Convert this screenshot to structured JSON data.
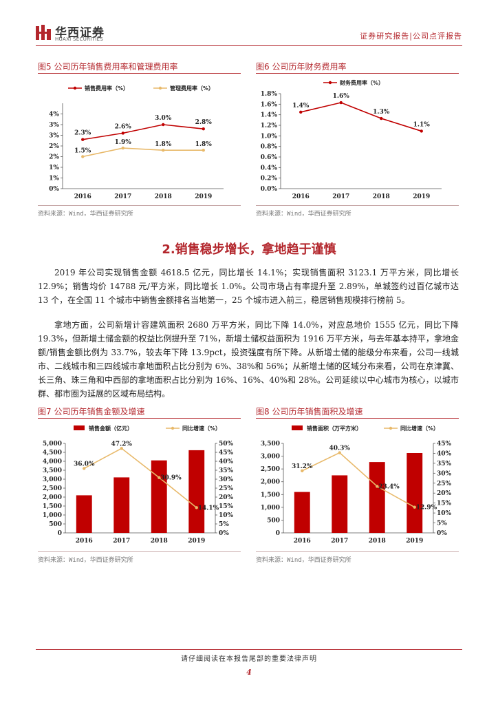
{
  "header": {
    "logo_cn": "华西证券",
    "logo_en": "HUAXI SECURITIES",
    "doc_type": "证券研究报告|公司点评报告"
  },
  "colors": {
    "accent": "#b3262c",
    "bar": "#c00000",
    "line_gold": "#e8b96a",
    "line_red": "#c00000"
  },
  "fig5": {
    "title": "图5   公司历年销售费用率和管理费用率",
    "source": "资料来源：Wind，华西证券研究所"
  },
  "fig6": {
    "title": "图6   公司历年财务费用率",
    "source": "资料来源：Wind，华西证券研究所"
  },
  "section": {
    "title": "2.销售稳步增长，拿地趋于谨慎"
  },
  "paragraphs": [
    "2019 年公司实现销售金额 4618.5 亿元，同比增长 14.1%；实现销售面积 3123.1 万平方米，同比增长 12.9%；销售均价 14788 元/平方米，同比增长 1.0%。公司市场占有率提升至 2.89%，单城签约过百亿城市达 13 个，在全国 11 个城市中销售金额排名当地第一，25 个城市进入前三，稳居销售规模排行榜前 5。",
    "拿地方面，公司新增计容建筑面积 2680 万平方米，同比下降 14.0%，对应总地价 1555 亿元，同比下降 19.3%，但新增土储金额的权益比例提升至 71%，新增土储权益面积为 1916 万平方米，与去年基本持平，拿地金额/销售金额比例为 33.7%，较去年下降 13.9pct，投资强度有所下降。从新增土储的能级分布来看，公司一线城市、二线城市和三四线城市拿地面积占比分别为 6%、38%和 56%；从新增土储的区域分布来看，公司在京津冀、长三角、珠三角和中西部的拿地面积占比分别为 16%、16%、40%和 28%。公司延续以中心城市为核心，以城市群、都市圈为延展的区域布局结构。"
  ],
  "fig7": {
    "title": "图7   公司历年销售金额及增速",
    "source": "资料来源：Wind，华西证券研究所"
  },
  "fig8": {
    "title": "图8   公司历年销售面积及增速",
    "source": "资料来源：Wind，华西证券研究所"
  },
  "footer": {
    "disclaimer": "请仔细阅读在本报告尾部的重要法律声明",
    "page": "4"
  },
  "chart_data": [
    {
      "id": "fig5",
      "type": "line",
      "categories": [
        "2016",
        "2017",
        "2018",
        "2019"
      ],
      "series": [
        {
          "name": "销售费用率（%）",
          "values": [
            2.3,
            2.6,
            3.0,
            2.8
          ],
          "labels": [
            "2.3%",
            "2.6%",
            "3.0%",
            "2.8%"
          ],
          "color": "#c00000"
        },
        {
          "name": "管理费用率（%）",
          "values": [
            1.5,
            1.9,
            1.8,
            1.8
          ],
          "labels": [
            "1.5%",
            "1.9%",
            "1.8%",
            "1.8%"
          ],
          "color": "#e8b96a"
        }
      ],
      "ylim": [
        0,
        4
      ],
      "yticks": [
        "0%",
        "1%",
        "1%",
        "2%",
        "2%",
        "3%",
        "3%",
        "4%"
      ],
      "ytick_values": [
        0,
        0.5,
        1,
        1.5,
        2,
        2.5,
        3,
        3.5
      ],
      "ytick_labels_shown": [
        "0%",
        "1%",
        "1%",
        "2%",
        "2%",
        "3%",
        "3%",
        "4%"
      ],
      "legend": "top"
    },
    {
      "id": "fig6",
      "type": "line",
      "categories": [
        "2016",
        "2017",
        "2018",
        "2019"
      ],
      "series": [
        {
          "name": "财务费用率（%）",
          "values": [
            1.45,
            1.63,
            1.33,
            1.09
          ],
          "labels": [
            "1.4%",
            "1.6%",
            "1.3%",
            "1.1%"
          ],
          "color": "#c00000"
        }
      ],
      "ylim": [
        0,
        1.8
      ],
      "ytick_values": [
        0,
        0.2,
        0.4,
        0.6,
        0.8,
        1.0,
        1.2,
        1.4,
        1.6,
        1.8
      ],
      "ytick_labels_shown": [
        "0.0%",
        "0.2%",
        "0.4%",
        "0.6%",
        "0.8%",
        "1.0%",
        "1.2%",
        "1.4%",
        "1.6%",
        "1.8%"
      ],
      "legend": "top"
    },
    {
      "id": "fig7",
      "type": "bar",
      "categories": [
        "2016",
        "2017",
        "2018",
        "2019"
      ],
      "series": [
        {
          "name": "销售金额（亿元）",
          "values": [
            2100,
            3100,
            4050,
            4618.5
          ],
          "color": "#c00000",
          "axis": "left"
        },
        {
          "name": "同比增速（%）",
          "values": [
            36.0,
            47.2,
            30.9,
            14.1
          ],
          "labels": [
            "36.0%",
            "47.2%",
            "30.9%",
            "14.1%"
          ],
          "color": "#e8b96a",
          "axis": "right",
          "type": "line"
        }
      ],
      "ylim": [
        0,
        5000
      ],
      "ytick_values": [
        0,
        500,
        1000,
        1500,
        2000,
        2500,
        3000,
        3500,
        4000,
        4500,
        5000
      ],
      "ytick_labels_shown": [
        "0",
        "500",
        "1,000",
        "1,500",
        "2,000",
        "2,500",
        "3,000",
        "3,500",
        "4,000",
        "4,500",
        "5,000"
      ],
      "y2lim": [
        0,
        50
      ],
      "y2tick_values": [
        0,
        5,
        10,
        15,
        20,
        25,
        30,
        35,
        40,
        45,
        50
      ],
      "y2tick_labels_shown": [
        "0%",
        "5%",
        "10%",
        "15%",
        "20%",
        "25%",
        "30%",
        "35%",
        "40%",
        "45%",
        "50%"
      ],
      "legend": "top"
    },
    {
      "id": "fig8",
      "type": "bar",
      "categories": [
        "2016",
        "2017",
        "2018",
        "2019"
      ],
      "series": [
        {
          "name": "销售面积（万平方米）",
          "values": [
            1600,
            2250,
            2770,
            3123.1
          ],
          "color": "#c00000",
          "axis": "left"
        },
        {
          "name": "同比增速（%）",
          "values": [
            31.2,
            40.3,
            23.4,
            12.9
          ],
          "labels": [
            "31.2%",
            "40.3%",
            "23.4%",
            "12.9%"
          ],
          "color": "#e8b96a",
          "axis": "right",
          "type": "line"
        }
      ],
      "ylim": [
        0,
        3500
      ],
      "ytick_values": [
        0,
        500,
        1000,
        1500,
        2000,
        2500,
        3000,
        3500
      ],
      "ytick_labels_shown": [
        "0",
        "500",
        "1,000",
        "1,500",
        "2,000",
        "2,500",
        "3,000",
        "3,500"
      ],
      "y2lim": [
        0,
        45
      ],
      "y2tick_values": [
        0,
        5,
        10,
        15,
        20,
        25,
        30,
        35,
        40,
        45
      ],
      "y2tick_labels_shown": [
        "0%",
        "5%",
        "10%",
        "15%",
        "20%",
        "25%",
        "30%",
        "35%",
        "40%",
        "45%"
      ],
      "legend": "top"
    }
  ]
}
